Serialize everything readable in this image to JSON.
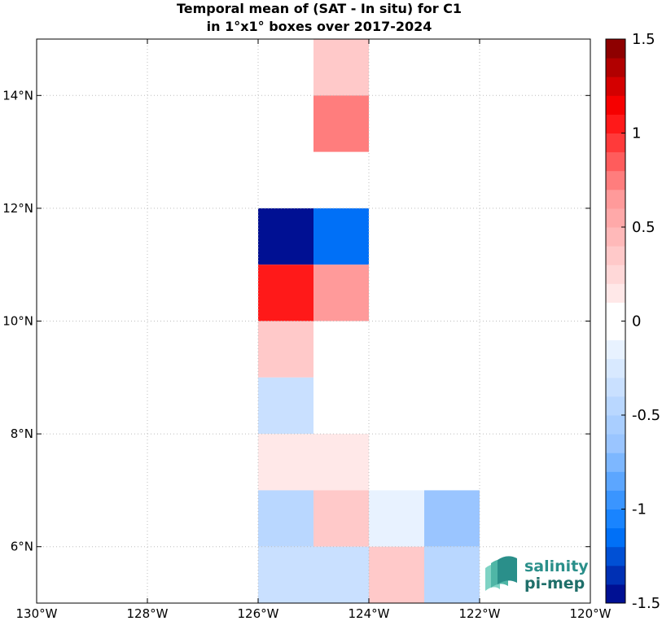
{
  "chart_data": {
    "type": "heatmap",
    "title": [
      "Temporal mean of (SAT - In situ) for C1",
      "in 1°x1° boxes over 2017-2024"
    ],
    "xlabel": "",
    "ylabel": "",
    "xlim": [
      -130,
      -120
    ],
    "ylim": [
      5,
      15
    ],
    "grid": true,
    "x_ticks": [
      {
        "value": -130,
        "label": "130°W"
      },
      {
        "value": -128,
        "label": "128°W"
      },
      {
        "value": -126,
        "label": "126°W"
      },
      {
        "value": -124,
        "label": "124°W"
      },
      {
        "value": -122,
        "label": "122°W"
      },
      {
        "value": -120,
        "label": "120°W"
      }
    ],
    "y_ticks": [
      {
        "value": 6,
        "label": "6°N"
      },
      {
        "value": 8,
        "label": "8°N"
      },
      {
        "value": 10,
        "label": "10°N"
      },
      {
        "value": 12,
        "label": "12°N"
      },
      {
        "value": 14,
        "label": "14°N"
      }
    ],
    "cells": [
      {
        "lon": -125,
        "lat": 14,
        "value": 0.3
      },
      {
        "lon": -125,
        "lat": 13,
        "value": 0.75
      },
      {
        "lon": -126,
        "lat": 11,
        "value": -1.45
      },
      {
        "lon": -125,
        "lat": 11,
        "value": -1.2
      },
      {
        "lon": -126,
        "lat": 10,
        "value": 1.0
      },
      {
        "lon": -125,
        "lat": 10,
        "value": 0.6
      },
      {
        "lon": -126,
        "lat": 9,
        "value": 0.4
      },
      {
        "lon": -126,
        "lat": 8,
        "value": -0.3
      },
      {
        "lon": -126,
        "lat": 7,
        "value": 0.15
      },
      {
        "lon": -125,
        "lat": 7,
        "value": 0.15
      },
      {
        "lon": -126,
        "lat": 6,
        "value": -0.5
      },
      {
        "lon": -125,
        "lat": 6,
        "value": 0.3
      },
      {
        "lon": -124,
        "lat": 6,
        "value": -0.15
      },
      {
        "lon": -123,
        "lat": 6,
        "value": -0.65
      },
      {
        "lon": -126,
        "lat": 5,
        "value": -0.4
      },
      {
        "lon": -125,
        "lat": 5,
        "value": -0.3
      },
      {
        "lon": -124,
        "lat": 5,
        "value": 0.3
      },
      {
        "lon": -123,
        "lat": 5,
        "value": -0.5
      }
    ],
    "colorbar": {
      "range": [
        -1.5,
        1.5
      ],
      "levels": 30,
      "ticks": [
        {
          "value": 1.5,
          "label": "1.5"
        },
        {
          "value": 1,
          "label": "1"
        },
        {
          "value": 0.5,
          "label": "0.5"
        },
        {
          "value": 0,
          "label": "0"
        },
        {
          "value": -0.5,
          "label": "-0.5"
        },
        {
          "value": -1,
          "label": "-1"
        },
        {
          "value": -1.5,
          "label": "-1.5"
        }
      ]
    }
  },
  "logo": {
    "line1": "salinity",
    "line2": "pi-mep",
    "color_text": "#2a8f8a",
    "color_dark": "#1f6f6a"
  }
}
